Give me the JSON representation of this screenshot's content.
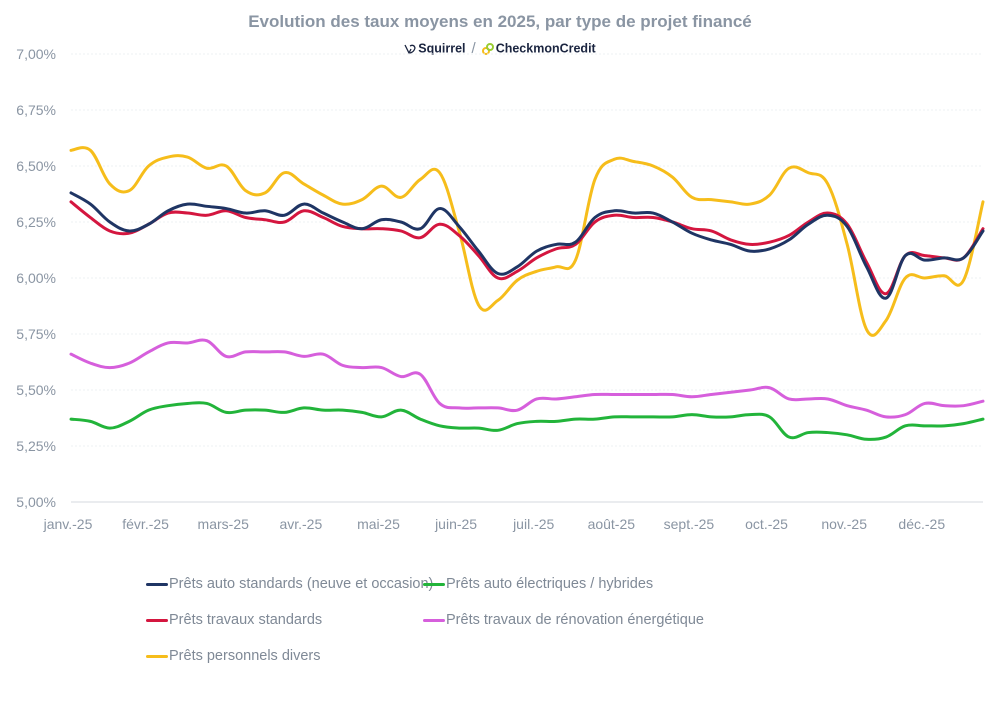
{
  "header": {
    "title": "Evolution des taux moyens en 2025, par type de projet financé",
    "logo_left": "Squirrel",
    "logo_separator": "/",
    "logo_right": "CheckmonCredit"
  },
  "chart_data": {
    "type": "line",
    "title": "Evolution des taux moyens en 2025, par type de projet financé",
    "xlabel": "",
    "ylabel": "",
    "ylim": [
      5.0,
      7.0
    ],
    "yticks": [
      5.0,
      5.25,
      5.5,
      5.75,
      6.0,
      6.25,
      6.5,
      6.75,
      7.0
    ],
    "ytick_labels": [
      "5,00%",
      "5,25%",
      "5,50%",
      "5,75%",
      "6,00%",
      "6,25%",
      "6,50%",
      "6,75%",
      "7,00%"
    ],
    "grid": true,
    "legend_position": "bottom",
    "x_points_per_month": 4,
    "x_tick_labels": [
      "janv.-25",
      "févr.-25",
      "mars-25",
      "avr.-25",
      "mai-25",
      "juin-25",
      "juil.-25",
      "août-25",
      "sept.-25",
      "oct.-25",
      "nov.-25",
      "déc.-25"
    ],
    "series": [
      {
        "name": "Prêts auto standards (neuve et occasion)",
        "color": "#1f3564",
        "values": [
          6.38,
          6.33,
          6.25,
          6.21,
          6.24,
          6.3,
          6.33,
          6.32,
          6.31,
          6.29,
          6.3,
          6.28,
          6.33,
          6.29,
          6.25,
          6.22,
          6.26,
          6.25,
          6.22,
          6.31,
          6.23,
          6.12,
          6.02,
          6.05,
          6.12,
          6.15,
          6.16,
          6.27,
          6.3,
          6.29,
          6.29,
          6.25,
          6.2,
          6.17,
          6.15,
          6.12,
          6.13,
          6.17,
          6.24,
          6.28,
          6.23,
          6.05,
          5.91,
          6.1,
          6.08,
          6.09,
          6.09,
          6.21
        ]
      },
      {
        "name": "Prêts auto électriques / hybrides",
        "color": "#22b43a",
        "values": [
          5.37,
          5.36,
          5.33,
          5.36,
          5.41,
          5.43,
          5.44,
          5.44,
          5.4,
          5.41,
          5.41,
          5.4,
          5.42,
          5.41,
          5.41,
          5.4,
          5.38,
          5.41,
          5.37,
          5.34,
          5.33,
          5.33,
          5.32,
          5.35,
          5.36,
          5.36,
          5.37,
          5.37,
          5.38,
          5.38,
          5.38,
          5.38,
          5.39,
          5.38,
          5.38,
          5.39,
          5.38,
          5.29,
          5.31,
          5.31,
          5.3,
          5.28,
          5.29,
          5.34,
          5.34,
          5.34,
          5.35,
          5.37
        ]
      },
      {
        "name": "Prêts travaux standards",
        "color": "#d4163f",
        "values": [
          6.34,
          6.27,
          6.21,
          6.2,
          6.24,
          6.29,
          6.29,
          6.28,
          6.3,
          6.27,
          6.26,
          6.25,
          6.3,
          6.27,
          6.23,
          6.22,
          6.22,
          6.21,
          6.18,
          6.24,
          6.19,
          6.1,
          6.0,
          6.03,
          6.09,
          6.13,
          6.15,
          6.25,
          6.28,
          6.27,
          6.27,
          6.25,
          6.22,
          6.21,
          6.17,
          6.15,
          6.16,
          6.19,
          6.25,
          6.29,
          6.24,
          6.07,
          5.93,
          6.1,
          6.1,
          6.09,
          6.09,
          6.22
        ]
      },
      {
        "name": "Prêts travaux de rénovation énergétique",
        "color": "#d65fdc",
        "values": [
          5.66,
          5.62,
          5.6,
          5.62,
          5.67,
          5.71,
          5.71,
          5.72,
          5.65,
          5.67,
          5.67,
          5.67,
          5.65,
          5.66,
          5.61,
          5.6,
          5.6,
          5.56,
          5.57,
          5.44,
          5.42,
          5.42,
          5.42,
          5.41,
          5.46,
          5.46,
          5.47,
          5.48,
          5.48,
          5.48,
          5.48,
          5.48,
          5.47,
          5.48,
          5.49,
          5.5,
          5.51,
          5.46,
          5.46,
          5.46,
          5.43,
          5.41,
          5.38,
          5.39,
          5.44,
          5.43,
          5.43,
          5.45
        ]
      },
      {
        "name": "Prêts personnels divers",
        "color": "#f6bd1b",
        "values": [
          6.57,
          6.57,
          6.42,
          6.39,
          6.5,
          6.54,
          6.54,
          6.49,
          6.5,
          6.39,
          6.38,
          6.47,
          6.42,
          6.37,
          6.33,
          6.35,
          6.41,
          6.36,
          6.44,
          6.47,
          6.21,
          5.88,
          5.9,
          5.99,
          6.03,
          6.05,
          6.08,
          6.44,
          6.53,
          6.52,
          6.5,
          6.45,
          6.36,
          6.35,
          6.34,
          6.33,
          6.37,
          6.49,
          6.47,
          6.42,
          6.15,
          5.77,
          5.81,
          6.0,
          6.0,
          6.01,
          5.99,
          6.34
        ]
      }
    ]
  },
  "legend": [
    {
      "label": "Prêts auto standards (neuve et occasion)",
      "color": "#1f3564"
    },
    {
      "label": "Prêts auto électriques / hybrides",
      "color": "#22b43a"
    },
    {
      "label": "Prêts travaux standards",
      "color": "#d4163f"
    },
    {
      "label": "Prêts travaux de rénovation énergétique",
      "color": "#d65fdc"
    },
    {
      "label": "Prêts personnels divers",
      "color": "#f6bd1b"
    }
  ]
}
